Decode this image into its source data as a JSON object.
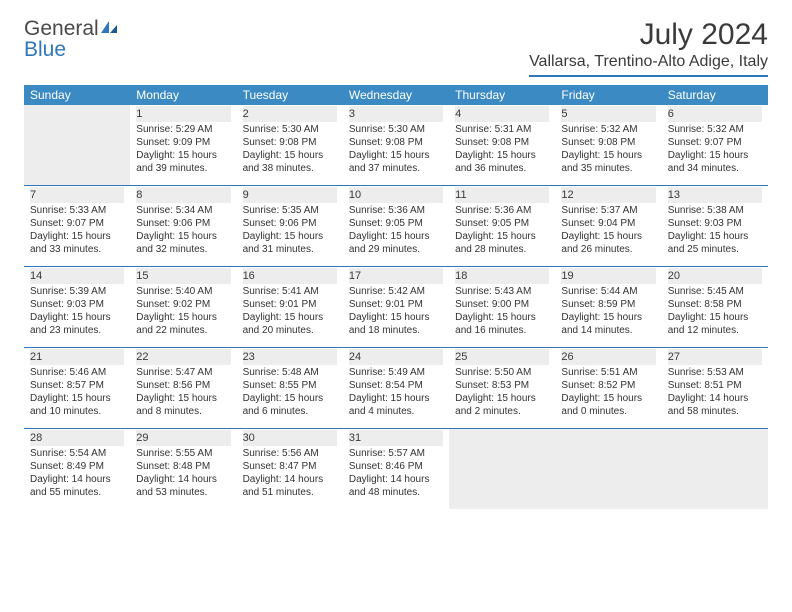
{
  "brand": {
    "word1": "General",
    "word2": "Blue"
  },
  "title": "July 2024",
  "location": "Vallarsa, Trentino-Alto Adige, Italy",
  "colors": {
    "header_bar": "#3b8ac4",
    "rule": "#2f77bb",
    "daynum_bg": "#ededed",
    "text": "#333333",
    "title_text": "#3a3a3a"
  },
  "day_labels": [
    "Sunday",
    "Monday",
    "Tuesday",
    "Wednesday",
    "Thursday",
    "Friday",
    "Saturday"
  ],
  "weeks": [
    [
      {
        "blank": true,
        "day": ""
      },
      {
        "day": "1",
        "sunrise": "Sunrise: 5:29 AM",
        "sunset": "Sunset: 9:09 PM",
        "dl1": "Daylight: 15 hours",
        "dl2": "and 39 minutes."
      },
      {
        "day": "2",
        "sunrise": "Sunrise: 5:30 AM",
        "sunset": "Sunset: 9:08 PM",
        "dl1": "Daylight: 15 hours",
        "dl2": "and 38 minutes."
      },
      {
        "day": "3",
        "sunrise": "Sunrise: 5:30 AM",
        "sunset": "Sunset: 9:08 PM",
        "dl1": "Daylight: 15 hours",
        "dl2": "and 37 minutes."
      },
      {
        "day": "4",
        "sunrise": "Sunrise: 5:31 AM",
        "sunset": "Sunset: 9:08 PM",
        "dl1": "Daylight: 15 hours",
        "dl2": "and 36 minutes."
      },
      {
        "day": "5",
        "sunrise": "Sunrise: 5:32 AM",
        "sunset": "Sunset: 9:08 PM",
        "dl1": "Daylight: 15 hours",
        "dl2": "and 35 minutes."
      },
      {
        "day": "6",
        "sunrise": "Sunrise: 5:32 AM",
        "sunset": "Sunset: 9:07 PM",
        "dl1": "Daylight: 15 hours",
        "dl2": "and 34 minutes."
      }
    ],
    [
      {
        "day": "7",
        "sunrise": "Sunrise: 5:33 AM",
        "sunset": "Sunset: 9:07 PM",
        "dl1": "Daylight: 15 hours",
        "dl2": "and 33 minutes."
      },
      {
        "day": "8",
        "sunrise": "Sunrise: 5:34 AM",
        "sunset": "Sunset: 9:06 PM",
        "dl1": "Daylight: 15 hours",
        "dl2": "and 32 minutes."
      },
      {
        "day": "9",
        "sunrise": "Sunrise: 5:35 AM",
        "sunset": "Sunset: 9:06 PM",
        "dl1": "Daylight: 15 hours",
        "dl2": "and 31 minutes."
      },
      {
        "day": "10",
        "sunrise": "Sunrise: 5:36 AM",
        "sunset": "Sunset: 9:05 PM",
        "dl1": "Daylight: 15 hours",
        "dl2": "and 29 minutes."
      },
      {
        "day": "11",
        "sunrise": "Sunrise: 5:36 AM",
        "sunset": "Sunset: 9:05 PM",
        "dl1": "Daylight: 15 hours",
        "dl2": "and 28 minutes."
      },
      {
        "day": "12",
        "sunrise": "Sunrise: 5:37 AM",
        "sunset": "Sunset: 9:04 PM",
        "dl1": "Daylight: 15 hours",
        "dl2": "and 26 minutes."
      },
      {
        "day": "13",
        "sunrise": "Sunrise: 5:38 AM",
        "sunset": "Sunset: 9:03 PM",
        "dl1": "Daylight: 15 hours",
        "dl2": "and 25 minutes."
      }
    ],
    [
      {
        "day": "14",
        "sunrise": "Sunrise: 5:39 AM",
        "sunset": "Sunset: 9:03 PM",
        "dl1": "Daylight: 15 hours",
        "dl2": "and 23 minutes."
      },
      {
        "day": "15",
        "sunrise": "Sunrise: 5:40 AM",
        "sunset": "Sunset: 9:02 PM",
        "dl1": "Daylight: 15 hours",
        "dl2": "and 22 minutes."
      },
      {
        "day": "16",
        "sunrise": "Sunrise: 5:41 AM",
        "sunset": "Sunset: 9:01 PM",
        "dl1": "Daylight: 15 hours",
        "dl2": "and 20 minutes."
      },
      {
        "day": "17",
        "sunrise": "Sunrise: 5:42 AM",
        "sunset": "Sunset: 9:01 PM",
        "dl1": "Daylight: 15 hours",
        "dl2": "and 18 minutes."
      },
      {
        "day": "18",
        "sunrise": "Sunrise: 5:43 AM",
        "sunset": "Sunset: 9:00 PM",
        "dl1": "Daylight: 15 hours",
        "dl2": "and 16 minutes."
      },
      {
        "day": "19",
        "sunrise": "Sunrise: 5:44 AM",
        "sunset": "Sunset: 8:59 PM",
        "dl1": "Daylight: 15 hours",
        "dl2": "and 14 minutes."
      },
      {
        "day": "20",
        "sunrise": "Sunrise: 5:45 AM",
        "sunset": "Sunset: 8:58 PM",
        "dl1": "Daylight: 15 hours",
        "dl2": "and 12 minutes."
      }
    ],
    [
      {
        "day": "21",
        "sunrise": "Sunrise: 5:46 AM",
        "sunset": "Sunset: 8:57 PM",
        "dl1": "Daylight: 15 hours",
        "dl2": "and 10 minutes."
      },
      {
        "day": "22",
        "sunrise": "Sunrise: 5:47 AM",
        "sunset": "Sunset: 8:56 PM",
        "dl1": "Daylight: 15 hours",
        "dl2": "and 8 minutes."
      },
      {
        "day": "23",
        "sunrise": "Sunrise: 5:48 AM",
        "sunset": "Sunset: 8:55 PM",
        "dl1": "Daylight: 15 hours",
        "dl2": "and 6 minutes."
      },
      {
        "day": "24",
        "sunrise": "Sunrise: 5:49 AM",
        "sunset": "Sunset: 8:54 PM",
        "dl1": "Daylight: 15 hours",
        "dl2": "and 4 minutes."
      },
      {
        "day": "25",
        "sunrise": "Sunrise: 5:50 AM",
        "sunset": "Sunset: 8:53 PM",
        "dl1": "Daylight: 15 hours",
        "dl2": "and 2 minutes."
      },
      {
        "day": "26",
        "sunrise": "Sunrise: 5:51 AM",
        "sunset": "Sunset: 8:52 PM",
        "dl1": "Daylight: 15 hours",
        "dl2": "and 0 minutes."
      },
      {
        "day": "27",
        "sunrise": "Sunrise: 5:53 AM",
        "sunset": "Sunset: 8:51 PM",
        "dl1": "Daylight: 14 hours",
        "dl2": "and 58 minutes."
      }
    ],
    [
      {
        "day": "28",
        "sunrise": "Sunrise: 5:54 AM",
        "sunset": "Sunset: 8:49 PM",
        "dl1": "Daylight: 14 hours",
        "dl2": "and 55 minutes."
      },
      {
        "day": "29",
        "sunrise": "Sunrise: 5:55 AM",
        "sunset": "Sunset: 8:48 PM",
        "dl1": "Daylight: 14 hours",
        "dl2": "and 53 minutes."
      },
      {
        "day": "30",
        "sunrise": "Sunrise: 5:56 AM",
        "sunset": "Sunset: 8:47 PM",
        "dl1": "Daylight: 14 hours",
        "dl2": "and 51 minutes."
      },
      {
        "day": "31",
        "sunrise": "Sunrise: 5:57 AM",
        "sunset": "Sunset: 8:46 PM",
        "dl1": "Daylight: 14 hours",
        "dl2": "and 48 minutes."
      },
      {
        "blank": true,
        "day": ""
      },
      {
        "blank": true,
        "day": ""
      },
      {
        "blank": true,
        "day": ""
      }
    ]
  ]
}
